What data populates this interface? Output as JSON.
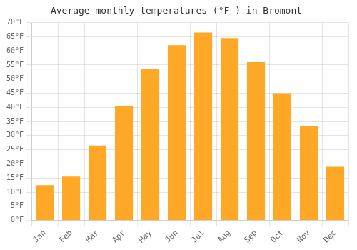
{
  "chart_data": {
    "type": "bar",
    "title": "Average monthly temperatures (°F ) in Bromont",
    "categories": [
      "Jan",
      "Feb",
      "Mar",
      "Apr",
      "May",
      "Jun",
      "Jul",
      "Aug",
      "Sep",
      "Oct",
      "Nov",
      "Dec"
    ],
    "values": [
      12.5,
      15.5,
      26.5,
      40.5,
      53.5,
      62,
      66.5,
      64.5,
      56,
      45,
      33.5,
      19
    ],
    "color": "#FFA726",
    "ylim": [
      0,
      70
    ],
    "yticks": [
      {
        "value": 0,
        "label": "0°F"
      },
      {
        "value": 5,
        "label": "5°F"
      },
      {
        "value": 10,
        "label": "10°F"
      },
      {
        "value": 15,
        "label": "15°F"
      },
      {
        "value": 20,
        "label": "20°F"
      },
      {
        "value": 25,
        "label": "25°F"
      },
      {
        "value": 30,
        "label": "30°F"
      },
      {
        "value": 35,
        "label": "35°F"
      },
      {
        "value": 40,
        "label": "40°F"
      },
      {
        "value": 45,
        "label": "45°F"
      },
      {
        "value": 50,
        "label": "50°F"
      },
      {
        "value": 55,
        "label": "55°F"
      },
      {
        "value": 60,
        "label": "60°F"
      },
      {
        "value": 65,
        "label": "65°F"
      },
      {
        "value": 70,
        "label": "70°F"
      }
    ],
    "grid": true
  }
}
